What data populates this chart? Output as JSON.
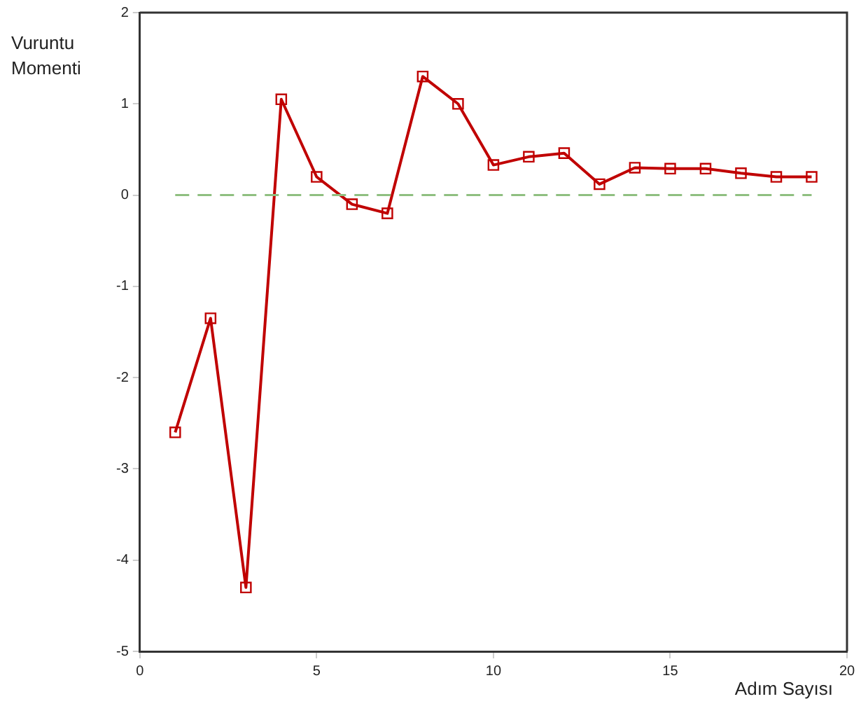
{
  "chart_data": {
    "type": "line",
    "xlabel": "Adım Sayısı",
    "ylabel": "Vuruntu Momenti",
    "x": [
      1,
      2,
      3,
      4,
      5,
      6,
      7,
      8,
      9,
      10,
      11,
      12,
      13,
      14,
      15,
      16,
      17,
      18,
      19
    ],
    "series": [
      {
        "color": "#c00000",
        "values": [
          -2.6,
          -1.35,
          -4.3,
          1.05,
          0.2,
          -0.1,
          -0.2,
          1.3,
          1.0,
          0.33,
          0.42,
          0.46,
          0.12,
          0.3,
          0.29,
          0.29,
          0.24,
          0.2,
          0.2
        ]
      }
    ],
    "xlim": [
      0,
      20
    ],
    "xticks": [
      0,
      5,
      10,
      15,
      20
    ],
    "ylim": [
      -5,
      2
    ],
    "yticks": [
      -5,
      -4,
      -3,
      -2,
      -1,
      0,
      1,
      2
    ],
    "ref_lines": [
      {
        "axis": "y",
        "value": 0,
        "label": null,
        "color": "#8fbf80",
        "line_style": "dashed"
      }
    ],
    "marker": "square",
    "line_style": "solid",
    "grid": false,
    "legend": false
  }
}
